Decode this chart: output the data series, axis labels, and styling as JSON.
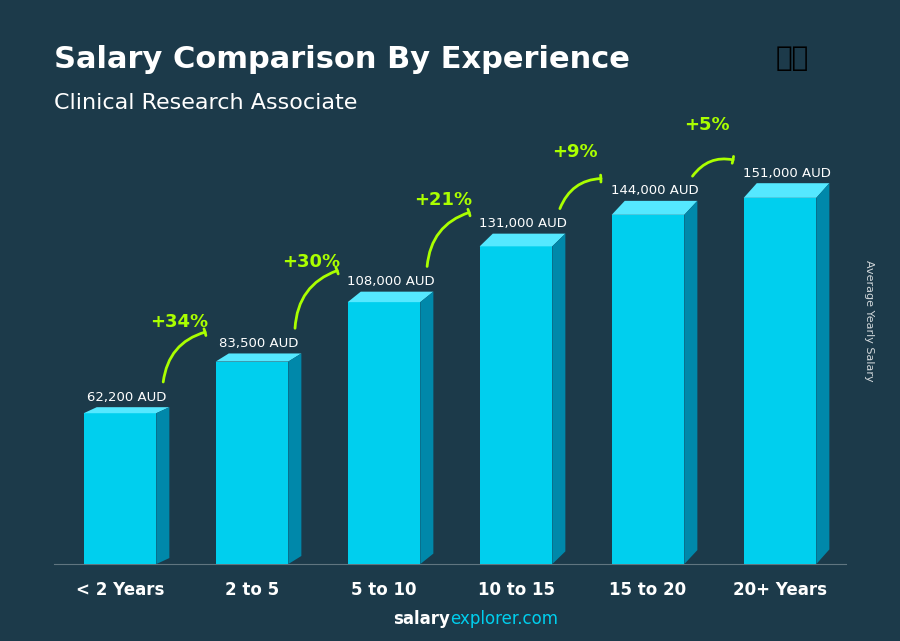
{
  "title": "Salary Comparison By Experience",
  "subtitle": "Clinical Research Associate",
  "categories": [
    "< 2 Years",
    "2 to 5",
    "5 to 10",
    "10 to 15",
    "15 to 20",
    "20+ Years"
  ],
  "values": [
    62200,
    83500,
    108000,
    131000,
    144000,
    151000
  ],
  "value_labels": [
    "62,200 AUD",
    "83,500 AUD",
    "108,000 AUD",
    "131,000 AUD",
    "144,000 AUD",
    "151,000 AUD"
  ],
  "pct_changes": [
    "+34%",
    "+30%",
    "+21%",
    "+9%",
    "+5%"
  ],
  "bar_color_top": "#00d4f0",
  "bar_color_bottom": "#0088bb",
  "bar_color_side": "#006699",
  "bg_color": "#1a2a3a",
  "title_color": "#ffffff",
  "subtitle_color": "#ffffff",
  "label_color": "#ffffff",
  "pct_color": "#aaff00",
  "footer_text": "salaryexplorer.com",
  "footer_salary": "salary",
  "ylabel_text": "Average Yearly Salary",
  "ylim": [
    0,
    185000
  ]
}
